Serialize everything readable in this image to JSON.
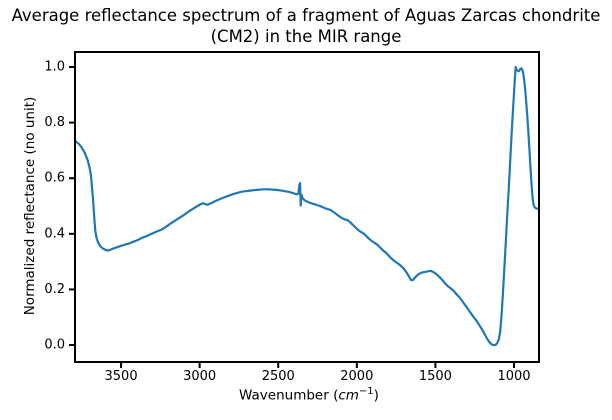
{
  "figure": {
    "title_line1": "Average reflectance spectrum of a fragment of Aguas Zarcas chondrite",
    "title_line2": "(CM2) in the MIR range"
  },
  "chart_data": {
    "type": "line",
    "title": "Average reflectance spectrum of a fragment of Aguas Zarcas chondrite (CM2) in the MIR range",
    "xlabel": "Wavenumber (cm−1)",
    "xlabel_parts": {
      "prefix": "Wavenumber (",
      "unit": "cm",
      "exponent": "−1",
      "suffix": ")"
    },
    "ylabel": "Normalized reflectance (no unit)",
    "x_tick_labels": [
      "3500",
      "3000",
      "2500",
      "2000",
      "1500",
      "1000"
    ],
    "x_tick_values": [
      3500,
      3000,
      2500,
      2000,
      1500,
      1000
    ],
    "y_tick_labels": [
      "0.0",
      "0.2",
      "0.4",
      "0.6",
      "0.8",
      "1.0"
    ],
    "y_tick_values": [
      0.0,
      0.2,
      0.4,
      0.6,
      0.8,
      1.0
    ],
    "xlim": [
      3793,
      841
    ],
    "ylim": [
      -0.061,
      1.054
    ],
    "x_axis_reversed": true,
    "grid": false,
    "legend_position": "none",
    "line_color": "#1f77b4",
    "line_width": 2.2,
    "axis_color": "#000000",
    "series": [
      {
        "name": "Average reflectance",
        "points": [
          [
            3790,
            0.733
          ],
          [
            3770,
            0.724
          ],
          [
            3750,
            0.71
          ],
          [
            3730,
            0.69
          ],
          [
            3712,
            0.664
          ],
          [
            3700,
            0.638
          ],
          [
            3692,
            0.612
          ],
          [
            3685,
            0.568
          ],
          [
            3678,
            0.52
          ],
          [
            3671,
            0.462
          ],
          [
            3664,
            0.41
          ],
          [
            3655,
            0.383
          ],
          [
            3645,
            0.368
          ],
          [
            3632,
            0.355
          ],
          [
            3615,
            0.347
          ],
          [
            3598,
            0.342
          ],
          [
            3580,
            0.34
          ],
          [
            3562,
            0.344
          ],
          [
            3545,
            0.348
          ],
          [
            3525,
            0.352
          ],
          [
            3505,
            0.356
          ],
          [
            3485,
            0.359
          ],
          [
            3465,
            0.363
          ],
          [
            3445,
            0.366
          ],
          [
            3425,
            0.371
          ],
          [
            3405,
            0.375
          ],
          [
            3385,
            0.38
          ],
          [
            3365,
            0.386
          ],
          [
            3345,
            0.39
          ],
          [
            3325,
            0.395
          ],
          [
            3305,
            0.4
          ],
          [
            3285,
            0.405
          ],
          [
            3265,
            0.41
          ],
          [
            3245,
            0.414
          ],
          [
            3225,
            0.421
          ],
          [
            3205,
            0.429
          ],
          [
            3185,
            0.437
          ],
          [
            3165,
            0.444
          ],
          [
            3145,
            0.452
          ],
          [
            3125,
            0.459
          ],
          [
            3105,
            0.466
          ],
          [
            3085,
            0.474
          ],
          [
            3065,
            0.482
          ],
          [
            3045,
            0.489
          ],
          [
            3025,
            0.496
          ],
          [
            3008,
            0.502
          ],
          [
            2993,
            0.507
          ],
          [
            2978,
            0.51
          ],
          [
            2963,
            0.506
          ],
          [
            2948,
            0.505
          ],
          [
            2933,
            0.509
          ],
          [
            2915,
            0.513
          ],
          [
            2895,
            0.519
          ],
          [
            2875,
            0.524
          ],
          [
            2855,
            0.529
          ],
          [
            2835,
            0.533
          ],
          [
            2815,
            0.537
          ],
          [
            2795,
            0.541
          ],
          [
            2775,
            0.545
          ],
          [
            2755,
            0.548
          ],
          [
            2735,
            0.551
          ],
          [
            2715,
            0.553
          ],
          [
            2695,
            0.554
          ],
          [
            2675,
            0.556
          ],
          [
            2655,
            0.557
          ],
          [
            2635,
            0.558
          ],
          [
            2615,
            0.559
          ],
          [
            2595,
            0.56
          ],
          [
            2575,
            0.56
          ],
          [
            2555,
            0.56
          ],
          [
            2535,
            0.559
          ],
          [
            2515,
            0.558
          ],
          [
            2495,
            0.557
          ],
          [
            2475,
            0.555
          ],
          [
            2455,
            0.553
          ],
          [
            2435,
            0.551
          ],
          [
            2415,
            0.548
          ],
          [
            2398,
            0.545
          ],
          [
            2383,
            0.542
          ],
          [
            2372,
            0.544
          ],
          [
            2366,
            0.575
          ],
          [
            2361,
            0.582
          ],
          [
            2357,
            0.502
          ],
          [
            2352,
            0.54
          ],
          [
            2345,
            0.528
          ],
          [
            2335,
            0.522
          ],
          [
            2320,
            0.517
          ],
          [
            2305,
            0.513
          ],
          [
            2285,
            0.509
          ],
          [
            2265,
            0.506
          ],
          [
            2245,
            0.502
          ],
          [
            2225,
            0.498
          ],
          [
            2205,
            0.493
          ],
          [
            2185,
            0.489
          ],
          [
            2168,
            0.486
          ],
          [
            2150,
            0.479
          ],
          [
            2130,
            0.471
          ],
          [
            2112,
            0.463
          ],
          [
            2095,
            0.457
          ],
          [
            2078,
            0.452
          ],
          [
            2062,
            0.45
          ],
          [
            2045,
            0.443
          ],
          [
            2028,
            0.434
          ],
          [
            2010,
            0.424
          ],
          [
            1993,
            0.415
          ],
          [
            1975,
            0.407
          ],
          [
            1958,
            0.402
          ],
          [
            1940,
            0.392
          ],
          [
            1922,
            0.382
          ],
          [
            1905,
            0.374
          ],
          [
            1888,
            0.368
          ],
          [
            1870,
            0.361
          ],
          [
            1852,
            0.351
          ],
          [
            1835,
            0.341
          ],
          [
            1818,
            0.334
          ],
          [
            1800,
            0.323
          ],
          [
            1783,
            0.313
          ],
          [
            1765,
            0.304
          ],
          [
            1748,
            0.297
          ],
          [
            1730,
            0.29
          ],
          [
            1712,
            0.281
          ],
          [
            1695,
            0.27
          ],
          [
            1680,
            0.258
          ],
          [
            1668,
            0.246
          ],
          [
            1656,
            0.234
          ],
          [
            1645,
            0.233
          ],
          [
            1632,
            0.241
          ],
          [
            1618,
            0.25
          ],
          [
            1602,
            0.257
          ],
          [
            1585,
            0.261
          ],
          [
            1568,
            0.263
          ],
          [
            1550,
            0.265
          ],
          [
            1532,
            0.267
          ],
          [
            1515,
            0.263
          ],
          [
            1498,
            0.257
          ],
          [
            1482,
            0.249
          ],
          [
            1466,
            0.24
          ],
          [
            1450,
            0.23
          ],
          [
            1436,
            0.22
          ],
          [
            1420,
            0.211
          ],
          [
            1405,
            0.205
          ],
          [
            1390,
            0.198
          ],
          [
            1375,
            0.189
          ],
          [
            1360,
            0.179
          ],
          [
            1345,
            0.17
          ],
          [
            1330,
            0.159
          ],
          [
            1315,
            0.147
          ],
          [
            1300,
            0.135
          ],
          [
            1285,
            0.123
          ],
          [
            1270,
            0.111
          ],
          [
            1255,
            0.099
          ],
          [
            1240,
            0.088
          ],
          [
            1225,
            0.076
          ],
          [
            1210,
            0.062
          ],
          [
            1195,
            0.048
          ],
          [
            1180,
            0.032
          ],
          [
            1168,
            0.02
          ],
          [
            1156,
            0.01
          ],
          [
            1146,
            0.004
          ],
          [
            1136,
            0.001
          ],
          [
            1126,
            0.0
          ],
          [
            1116,
            0.001
          ],
          [
            1106,
            0.008
          ],
          [
            1097,
            0.02
          ],
          [
            1088,
            0.048
          ],
          [
            1079,
            0.11
          ],
          [
            1070,
            0.19
          ],
          [
            1061,
            0.28
          ],
          [
            1052,
            0.37
          ],
          [
            1043,
            0.465
          ],
          [
            1034,
            0.56
          ],
          [
            1025,
            0.655
          ],
          [
            1016,
            0.75
          ],
          [
            1008,
            0.835
          ],
          [
            1001,
            0.9
          ],
          [
            995,
            0.955
          ],
          [
            989,
            1.0
          ],
          [
            983,
            0.99
          ],
          [
            976,
            0.986
          ],
          [
            969,
            0.985
          ],
          [
            961,
            0.992
          ],
          [
            953,
            0.995
          ],
          [
            947,
            0.99
          ],
          [
            941,
            0.975
          ],
          [
            935,
            0.952
          ],
          [
            929,
            0.918
          ],
          [
            923,
            0.878
          ],
          [
            916,
            0.828
          ],
          [
            909,
            0.77
          ],
          [
            902,
            0.705
          ],
          [
            895,
            0.638
          ],
          [
            888,
            0.575
          ],
          [
            881,
            0.525
          ],
          [
            875,
            0.503
          ],
          [
            868,
            0.495
          ],
          [
            860,
            0.492
          ],
          [
            853,
            0.49
          ]
        ]
      }
    ]
  },
  "plot_geometry_note": ""
}
